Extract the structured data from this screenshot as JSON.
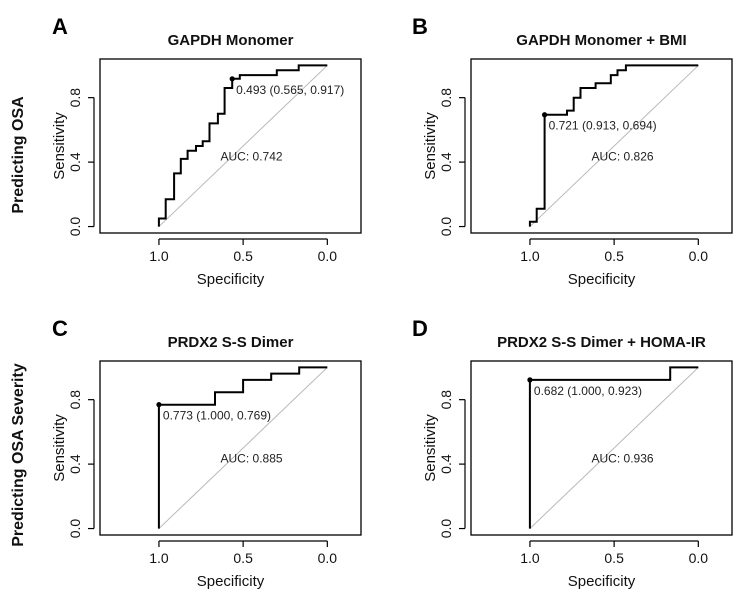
{
  "row_labels": [
    "Predicting OSA",
    "Predicting  OSA Severity"
  ],
  "chart_data": [
    {
      "type": "line",
      "panel_letter": "A",
      "title": "GAPDH Monomer",
      "xlabel": "Specificity",
      "ylabel": "Sensitivity",
      "xlim": [
        1.35,
        -0.2
      ],
      "ylim": [
        -0.04,
        1.04
      ],
      "x_reversed": true,
      "xticks": [
        1.0,
        0.5,
        0.0
      ],
      "xtick_labels": [
        "1.0",
        "0.5",
        "0.0"
      ],
      "yticks": [
        0.0,
        0.4,
        0.8
      ],
      "ytick_labels": [
        "0.0",
        "0.4",
        "0.8"
      ],
      "grid": false,
      "chance_line": true,
      "roc": {
        "specificity": [
          1.0,
          1.0,
          0.96,
          0.96,
          0.91,
          0.91,
          0.87,
          0.87,
          0.83,
          0.83,
          0.78,
          0.78,
          0.74,
          0.74,
          0.7,
          0.7,
          0.65,
          0.65,
          0.61,
          0.61,
          0.565,
          0.565,
          0.52,
          0.52,
          0.3,
          0.3,
          0.17,
          0.17,
          0.0
        ],
        "sensitivity": [
          0.0,
          0.05,
          0.05,
          0.17,
          0.17,
          0.33,
          0.33,
          0.42,
          0.42,
          0.47,
          0.47,
          0.5,
          0.5,
          0.53,
          0.53,
          0.64,
          0.64,
          0.7,
          0.7,
          0.86,
          0.86,
          0.917,
          0.917,
          0.94,
          0.94,
          0.97,
          0.97,
          1.0,
          1.0
        ]
      },
      "threshold_point": {
        "specificity": 0.565,
        "sensitivity": 0.917
      },
      "threshold_label": "0.493 (0.565, 0.917)",
      "auc_label": "AUC: 0.742"
    },
    {
      "type": "line",
      "panel_letter": "B",
      "title": "GAPDH Monomer + BMI",
      "xlabel": "Specificity",
      "ylabel": "Sensitivity",
      "xlim": [
        1.35,
        -0.2
      ],
      "ylim": [
        -0.04,
        1.04
      ],
      "x_reversed": true,
      "xticks": [
        1.0,
        0.5,
        0.0
      ],
      "xtick_labels": [
        "1.0",
        "0.5",
        "0.0"
      ],
      "yticks": [
        0.0,
        0.4,
        0.8
      ],
      "ytick_labels": [
        "0.0",
        "0.4",
        "0.8"
      ],
      "grid": false,
      "chance_line": true,
      "roc": {
        "specificity": [
          1.0,
          1.0,
          0.96,
          0.96,
          0.913,
          0.913,
          0.78,
          0.78,
          0.74,
          0.74,
          0.7,
          0.7,
          0.61,
          0.61,
          0.52,
          0.52,
          0.48,
          0.48,
          0.43,
          0.43,
          0.0
        ],
        "sensitivity": [
          0.0,
          0.03,
          0.03,
          0.11,
          0.11,
          0.694,
          0.694,
          0.72,
          0.72,
          0.8,
          0.8,
          0.86,
          0.86,
          0.89,
          0.89,
          0.94,
          0.94,
          0.97,
          0.97,
          1.0,
          1.0
        ]
      },
      "threshold_point": {
        "specificity": 0.913,
        "sensitivity": 0.694
      },
      "threshold_label": "0.721 (0.913, 0.694)",
      "auc_label": "AUC: 0.826"
    },
    {
      "type": "line",
      "panel_letter": "C",
      "title": "PRDX2 S-S Dimer",
      "xlabel": "Specificity",
      "ylabel": "Sensitivity",
      "xlim": [
        1.35,
        -0.2
      ],
      "ylim": [
        -0.04,
        1.04
      ],
      "x_reversed": true,
      "xticks": [
        1.0,
        0.5,
        0.0
      ],
      "xtick_labels": [
        "1.0",
        "0.5",
        "0.0"
      ],
      "yticks": [
        0.0,
        0.4,
        0.8
      ],
      "ytick_labels": [
        "0.0",
        "0.4",
        "0.8"
      ],
      "grid": false,
      "chance_line": true,
      "roc": {
        "specificity": [
          1.0,
          1.0,
          0.667,
          0.667,
          0.5,
          0.5,
          0.333,
          0.333,
          0.167,
          0.167,
          0.0
        ],
        "sensitivity": [
          0.0,
          0.769,
          0.769,
          0.846,
          0.846,
          0.923,
          0.923,
          0.962,
          0.962,
          1.0,
          1.0
        ]
      },
      "threshold_point": {
        "specificity": 1.0,
        "sensitivity": 0.769
      },
      "threshold_label": "0.773 (1.000, 0.769)",
      "auc_label": "AUC: 0.885"
    },
    {
      "type": "line",
      "panel_letter": "D",
      "title": "PRDX2 S-S Dimer + HOMA-IR",
      "xlabel": "Specificity",
      "ylabel": "Sensitivity",
      "xlim": [
        1.35,
        -0.2
      ],
      "ylim": [
        -0.04,
        1.04
      ],
      "x_reversed": true,
      "xticks": [
        1.0,
        0.5,
        0.0
      ],
      "xtick_labels": [
        "1.0",
        "0.5",
        "0.0"
      ],
      "yticks": [
        0.0,
        0.4,
        0.8
      ],
      "ytick_labels": [
        "0.0",
        "0.4",
        "0.8"
      ],
      "grid": false,
      "chance_line": true,
      "roc": {
        "specificity": [
          1.0,
          1.0,
          0.167,
          0.167,
          0.0
        ],
        "sensitivity": [
          0.0,
          0.923,
          0.923,
          1.0,
          1.0
        ]
      },
      "threshold_point": {
        "specificity": 1.0,
        "sensitivity": 0.923
      },
      "threshold_label": "0.682 (1.000, 0.923)",
      "auc_label": "AUC: 0.936"
    }
  ]
}
